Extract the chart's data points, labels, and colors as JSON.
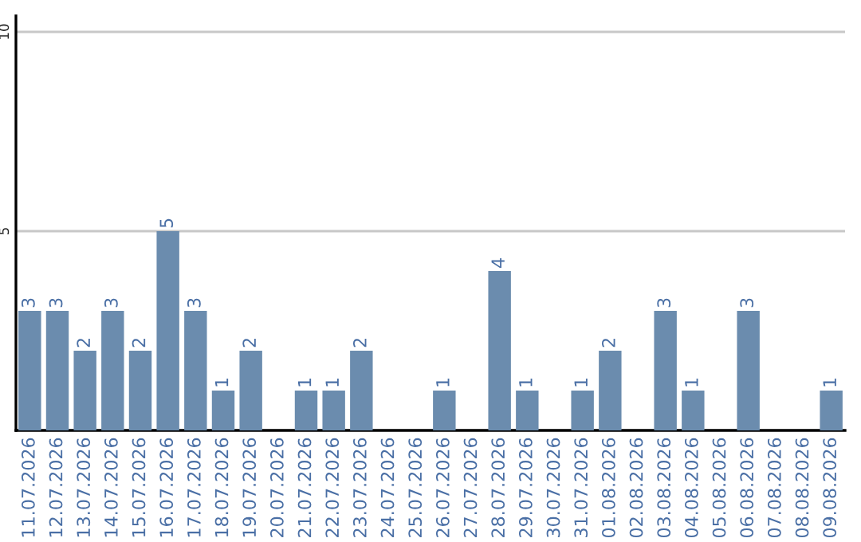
{
  "chart_data": {
    "type": "bar",
    "categories": [
      "11.07.2026",
      "12.07.2026",
      "13.07.2026",
      "14.07.2026",
      "15.07.2026",
      "16.07.2026",
      "17.07.2026",
      "18.07.2026",
      "19.07.2026",
      "20.07.2026",
      "21.07.2026",
      "22.07.2026",
      "23.07.2026",
      "24.07.2026",
      "25.07.2026",
      "26.07.2026",
      "27.07.2026",
      "28.07.2026",
      "29.07.2026",
      "30.07.2026",
      "31.07.2026",
      "01.08.2026",
      "02.08.2026",
      "03.08.2026",
      "04.08.2026",
      "05.08.2026",
      "06.08.2026",
      "07.08.2026",
      "08.08.2026",
      "09.08.2026"
    ],
    "values": [
      3,
      3,
      2,
      3,
      2,
      5,
      3,
      1,
      2,
      0,
      1,
      1,
      2,
      0,
      0,
      1,
      0,
      4,
      1,
      0,
      1,
      2,
      0,
      3,
      1,
      0,
      3,
      0,
      0,
      1
    ],
    "value_labels": [
      "3",
      "3",
      "2",
      "3",
      "2",
      "5",
      "3",
      "1",
      "2",
      null,
      "1",
      "1",
      "2",
      null,
      null,
      "1",
      null,
      "4",
      "1",
      null,
      "1",
      "2",
      null,
      "3",
      "1",
      null,
      "3",
      null,
      null,
      "1"
    ],
    "color": "#6b8cae",
    "ylim": [
      0,
      10.4
    ],
    "yticks": [
      {
        "value": 0,
        "label": null
      },
      5,
      10
    ],
    "grid": "y",
    "legend": false
  }
}
